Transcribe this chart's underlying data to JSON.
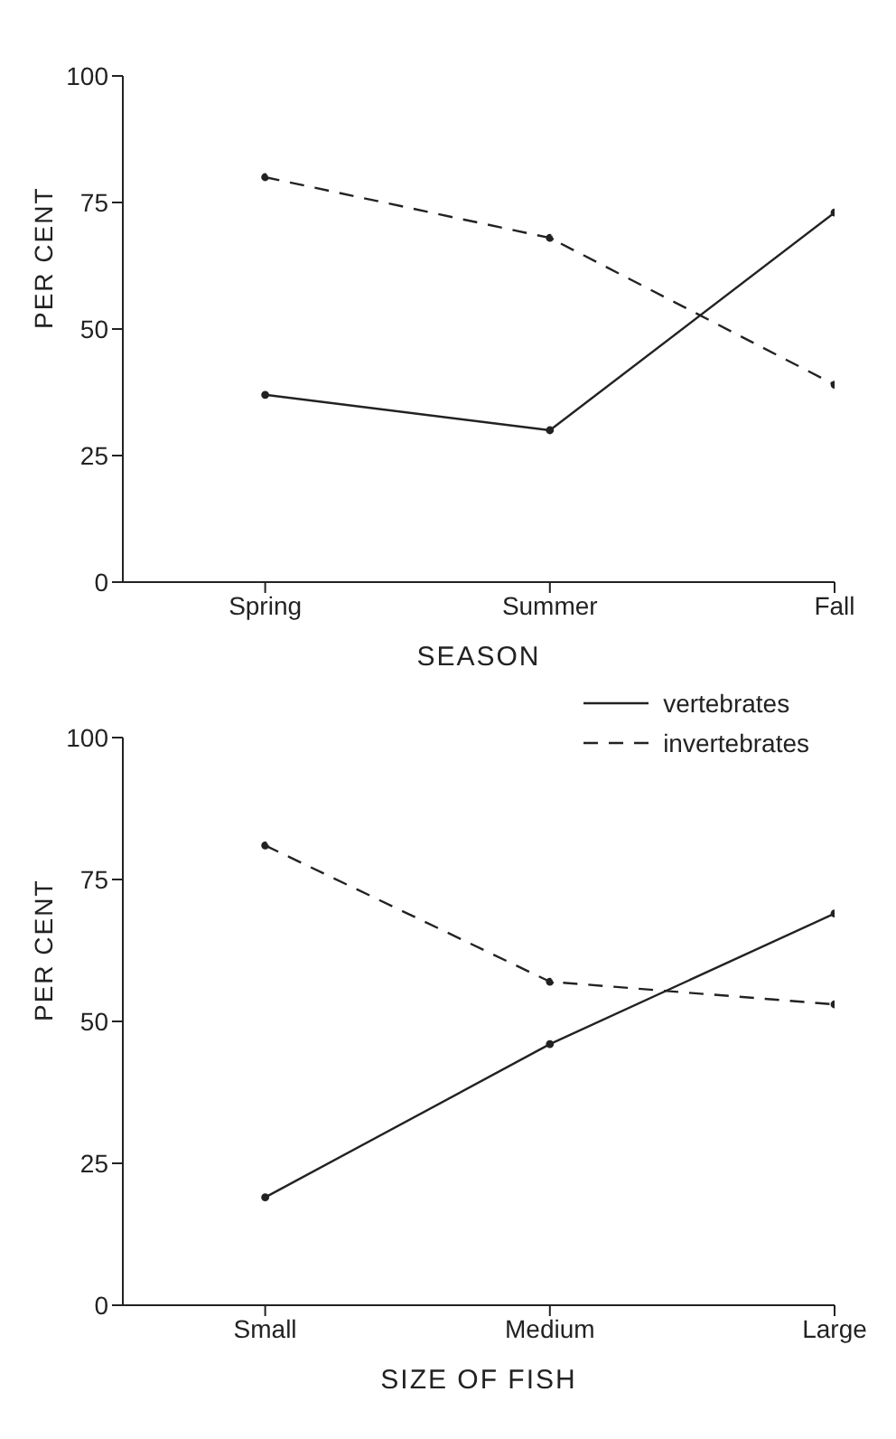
{
  "chart_data": [
    {
      "type": "line",
      "xlabel": "SEASON",
      "ylabel": "PER CENT",
      "categories": [
        "Spring",
        "Summer",
        "Fall"
      ],
      "ylim": [
        0,
        100
      ],
      "yticks": [
        0,
        25,
        50,
        75,
        100
      ],
      "grid": false,
      "marker": "circle",
      "series": [
        {
          "color": "#222222",
          "line_style": "solid",
          "values": [
            37,
            30,
            73
          ]
        },
        {
          "color": "#222222",
          "line_style": "dashed",
          "values": [
            80,
            68,
            39
          ]
        }
      ]
    },
    {
      "type": "line",
      "xlabel": "SIZE OF FISH",
      "ylabel": "PER CENT",
      "categories": [
        "Small",
        "Medium",
        "Large"
      ],
      "ylim": [
        0,
        100
      ],
      "yticks": [
        0,
        25,
        50,
        75,
        100
      ],
      "grid": false,
      "marker": "circle",
      "legend": "top right",
      "series": [
        {
          "name": "vertebrates",
          "color": "#222222",
          "line_style": "solid",
          "values": [
            19,
            46,
            69
          ]
        },
        {
          "name": "invertebrates",
          "color": "#222222",
          "line_style": "dashed",
          "values": [
            81,
            57,
            53
          ]
        }
      ]
    }
  ]
}
